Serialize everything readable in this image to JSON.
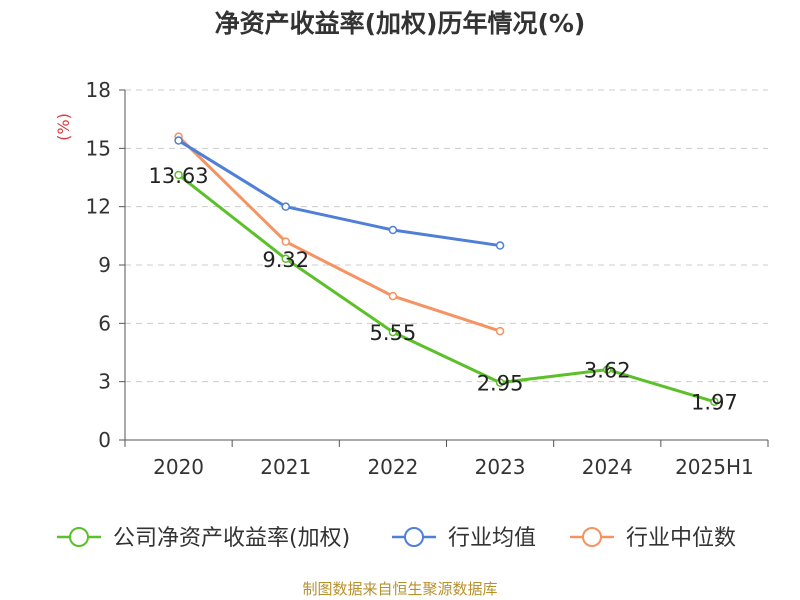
{
  "title": "净资产收益率(加权)历年情况(%)",
  "source": "制图数据来自恒生聚源数据库",
  "colors": {
    "company": "#5cc02a",
    "industry_avg": "#4f7fd6",
    "industry_median": "#f59362",
    "grid": "#cccccc",
    "axis": "#555555",
    "unit_label": "#d93a3a"
  },
  "chart_data": {
    "type": "line",
    "title": "净资产收益率(加权)历年情况(%)",
    "ylabel": "(%)",
    "xlabel": "",
    "categories": [
      "2020",
      "2021",
      "2022",
      "2023",
      "2024",
      "2025H1"
    ],
    "ylim": [
      0,
      18
    ],
    "yticks": [
      0,
      3,
      6,
      9,
      12,
      15,
      18
    ],
    "grid": true,
    "legend_position": "bottom",
    "series": [
      {
        "name": "公司净资产收益率(加权)",
        "color": "#5cc02a",
        "values": [
          13.63,
          9.32,
          5.55,
          2.95,
          3.62,
          1.97
        ],
        "labels": [
          "13.63",
          "9.32",
          "5.55",
          "2.95",
          "3.62",
          "1.97"
        ]
      },
      {
        "name": "行业均值",
        "color": "#4f7fd6",
        "values": [
          15.4,
          12.0,
          10.8,
          10.0,
          null,
          null
        ]
      },
      {
        "name": "行业中位数",
        "color": "#f59362",
        "values": [
          15.6,
          10.2,
          7.4,
          5.6,
          null,
          null
        ]
      }
    ]
  }
}
